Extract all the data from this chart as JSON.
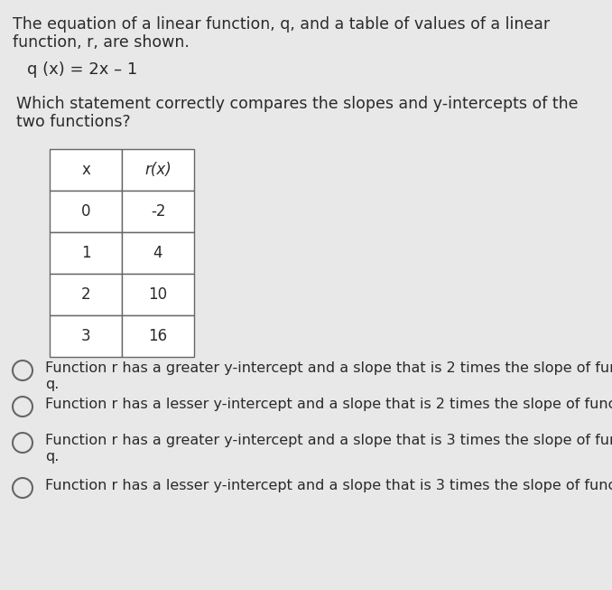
{
  "background_color": "#e8e8e8",
  "intro_text_line1": "The equation of a linear function, q, and a table of values of a linear",
  "intro_text_line2": "function, r, are shown.",
  "equation_text": "q (x) = 2x – 1",
  "question_text_line1": "Which statement correctly compares the slopes and y-intercepts of the",
  "question_text_line2": "two functions?",
  "table_headers": [
    "x",
    "r(x)"
  ],
  "table_data": [
    [
      "0",
      "-2"
    ],
    [
      "1",
      "4"
    ],
    [
      "2",
      "10"
    ],
    [
      "3",
      "16"
    ]
  ],
  "answer_options": [
    [
      "Function r has a greater y-intercept and a slope that is 2 times the slope of function",
      "q."
    ],
    [
      "Function r has a lesser y-intercept and a slope that is 2 times the slope of function q.",
      ""
    ],
    [
      "Function r has a greater y-intercept and a slope that is 3 times the slope of function",
      "q."
    ],
    [
      "Function r has a lesser y-intercept and a slope that is 3 times the slope of function q.",
      ""
    ]
  ],
  "text_color": "#2a2a2a",
  "table_border_color": "#666666",
  "table_fill_color": "#ffffff",
  "circle_color": "#666666",
  "font_size_intro": 12.5,
  "font_size_equation": 13,
  "font_size_question": 12.5,
  "font_size_table_header": 12,
  "font_size_table_data": 12,
  "font_size_answers": 11.5
}
